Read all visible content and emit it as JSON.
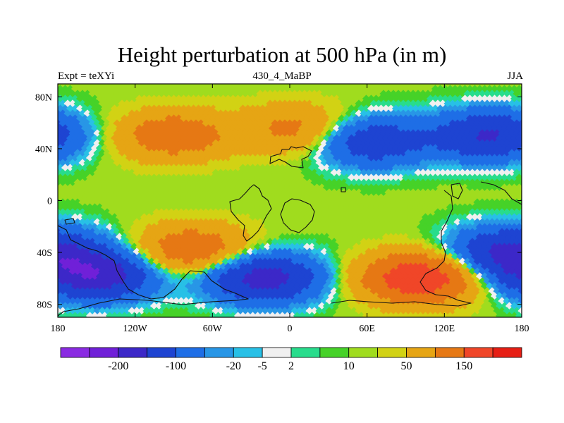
{
  "title": "Height perturbation at 500 hPa (in m)",
  "subtitle_left": "Expt = teXYi",
  "subtitle_center": "430_4_MaBP",
  "subtitle_right": "JJA",
  "chart_data": {
    "type": "heatmap",
    "variable": "500 hPa height perturbation",
    "units": "m",
    "x_ticks": [
      {
        "lon": -180,
        "label": "180"
      },
      {
        "lon": -120,
        "label": "120W"
      },
      {
        "lon": -60,
        "label": "60W"
      },
      {
        "lon": 0,
        "label": "0"
      },
      {
        "lon": 60,
        "label": "60E"
      },
      {
        "lon": 120,
        "label": "120E"
      },
      {
        "lon": 180,
        "label": "180"
      }
    ],
    "y_ticks": [
      {
        "lat": 80,
        "label": "80N"
      },
      {
        "lat": 40,
        "label": "40N"
      },
      {
        "lat": 0,
        "label": "0"
      },
      {
        "lat": -40,
        "label": "40S"
      },
      {
        "lat": -80,
        "label": "80S"
      }
    ],
    "xlim": [
      -180,
      180
    ],
    "ylim": [
      -90,
      90
    ],
    "colorbar": {
      "colors": [
        "#8a2be2",
        "#7020d8",
        "#3c28c8",
        "#1e44d2",
        "#1e6ee6",
        "#2896e6",
        "#28c0e6",
        "#f0f0f0",
        "#28dc8c",
        "#46d228",
        "#a0dc1e",
        "#d2d214",
        "#e6a514",
        "#e67814",
        "#f04628",
        "#e61e14"
      ],
      "labels": [
        "-200",
        "-100",
        "-20",
        "-5",
        "2",
        "10",
        "50",
        "150"
      ],
      "label_after_box": [
        1,
        3,
        5,
        6,
        7,
        9,
        11,
        13
      ]
    },
    "anomaly_centers": [
      {
        "lon": -90,
        "lat": 50,
        "value": 75
      },
      {
        "lon": 5,
        "lat": 55,
        "value": 55
      },
      {
        "lon": 65,
        "lat": 45,
        "value": -90
      },
      {
        "lon": 155,
        "lat": 50,
        "value": -110
      },
      {
        "lon": -150,
        "lat": -58,
        "value": -140
      },
      {
        "lon": -75,
        "lat": -38,
        "value": 80
      },
      {
        "lon": -20,
        "lat": -60,
        "value": -130
      },
      {
        "lon": 100,
        "lat": -60,
        "value": 140
      },
      {
        "lon": 170,
        "lat": -40,
        "value": -120
      }
    ]
  }
}
